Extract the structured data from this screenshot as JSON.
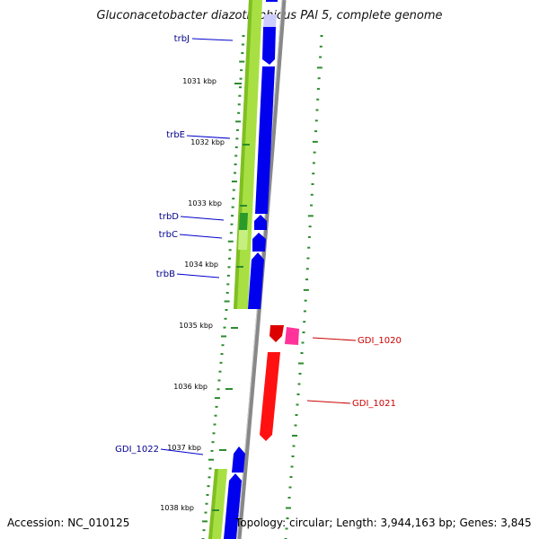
{
  "title": "Gluconacetobacter diazotrophicus PAl 5, complete genome",
  "footer": {
    "accession": "Accession: NC_010125",
    "topology": "Topology: circular; Length: 3,944,163 bp; Genes: 3,845"
  },
  "colors": {
    "forward_gene": "#0000ee",
    "reverse_gene": "#ee0000",
    "pink_gene": "#ff3399",
    "cds_track": "#99dd33",
    "cds_highlight": "#2a9a2a",
    "backbone": "#888888",
    "tick": "#2e8b2e",
    "gene_label_blue": "#00008b",
    "gene_label_red": "#cc0000",
    "leader_blue": "#0000cc",
    "leader_red": "#cc0000"
  },
  "ruler": [
    "1031 kbp",
    "1032 kbp",
    "1033 kbp",
    "1034 kbp",
    "1035 kbp",
    "1036 kbp",
    "1037 kbp",
    "1038 kbp"
  ],
  "gene_labels": {
    "left": [
      "trbJ",
      "trbE",
      "trbD",
      "trbC",
      "trbB",
      "GDI_1022"
    ],
    "right": [
      "GDI_1020",
      "GDI_1021"
    ]
  }
}
